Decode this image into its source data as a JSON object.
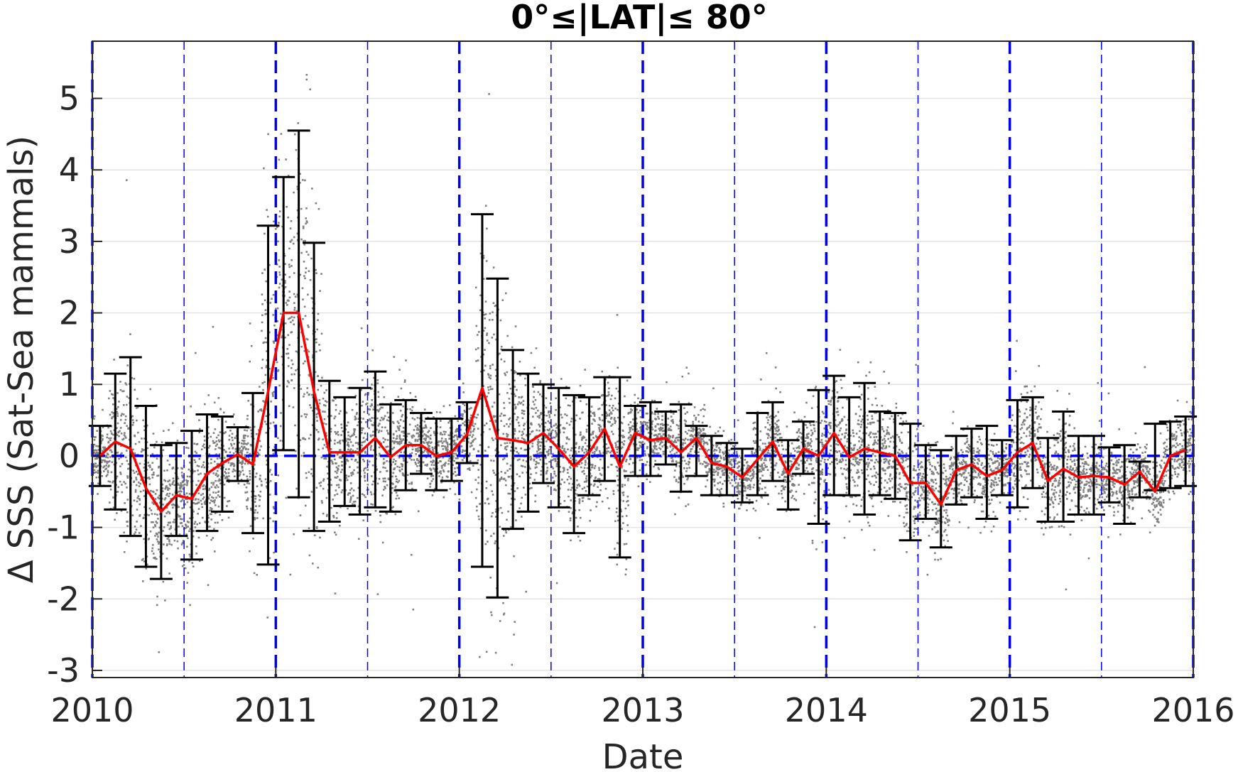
{
  "chart_data": {
    "type": "scatter",
    "title": "0°≤|LAT|≤ 80°",
    "xlabel": "Date",
    "ylabel": "Δ SSS (Sat-Sea mammals)",
    "xlim": [
      2010,
      2016
    ],
    "ylim": [
      -3.1,
      5.8
    ],
    "x_ticks": [
      2010,
      2011,
      2012,
      2013,
      2014,
      2015,
      2016
    ],
    "x_tick_labels": [
      "2010",
      "2011",
      "2012",
      "2013",
      "2014",
      "2015",
      "2016"
    ],
    "y_ticks": [
      -3,
      -2,
      -1,
      0,
      1,
      2,
      3,
      4,
      5
    ],
    "y_tick_labels": [
      "-3",
      "-2",
      "-1",
      "0",
      "1",
      "2",
      "3",
      "4",
      "5"
    ],
    "grid": true,
    "reference_line_y": 0,
    "year_boundaries": [
      2010,
      2011,
      2012,
      2013,
      2014,
      2015,
      2016
    ],
    "half_year_lines": [
      2010.5,
      2011.5,
      2012.5,
      2013.5,
      2014.5,
      2015.5
    ],
    "colors": {
      "scatter": "#808080",
      "mean_line": "#ff0000",
      "error_bars": "#000000",
      "reference": "#0000ee"
    },
    "monthly_mean": {
      "x": [
        2010.042,
        2010.125,
        2010.208,
        2010.292,
        2010.375,
        2010.458,
        2010.542,
        2010.625,
        2010.708,
        2010.792,
        2010.875,
        2010.958,
        2011.042,
        2011.125,
        2011.208,
        2011.292,
        2011.375,
        2011.458,
        2011.542,
        2011.625,
        2011.708,
        2011.792,
        2011.875,
        2011.958,
        2012.042,
        2012.125,
        2012.208,
        2012.292,
        2012.375,
        2012.458,
        2012.542,
        2012.625,
        2012.708,
        2012.792,
        2012.875,
        2012.958,
        2013.042,
        2013.125,
        2013.208,
        2013.292,
        2013.375,
        2013.458,
        2013.542,
        2013.625,
        2013.708,
        2013.792,
        2013.875,
        2013.958,
        2014.042,
        2014.125,
        2014.208,
        2014.292,
        2014.375,
        2014.458,
        2014.542,
        2014.625,
        2014.708,
        2014.792,
        2014.875,
        2014.958,
        2015.042,
        2015.125,
        2015.208,
        2015.292,
        2015.375,
        2015.458,
        2015.542,
        2015.625,
        2015.708,
        2015.792,
        2015.875,
        2015.958
      ],
      "y": [
        0.0,
        0.2,
        0.1,
        -0.45,
        -0.78,
        -0.55,
        -0.6,
        -0.25,
        -0.1,
        0.02,
        -0.12,
        0.9,
        2.0,
        2.0,
        0.9,
        0.05,
        0.05,
        0.05,
        0.25,
        -0.02,
        0.15,
        0.15,
        0.0,
        0.05,
        0.3,
        0.95,
        0.25,
        0.22,
        0.18,
        0.32,
        0.1,
        -0.15,
        0.05,
        0.38,
        -0.15,
        0.32,
        0.22,
        0.25,
        0.05,
        0.25,
        -0.1,
        -0.15,
        -0.3,
        -0.05,
        0.2,
        -0.25,
        0.1,
        0.0,
        0.32,
        -0.02,
        0.1,
        0.05,
        0.0,
        -0.38,
        -0.38,
        -0.68,
        -0.2,
        -0.12,
        -0.28,
        -0.2,
        0.05,
        0.18,
        -0.35,
        -0.18,
        -0.3,
        -0.28,
        -0.3,
        -0.4,
        -0.22,
        -0.5,
        0.0,
        0.08
      ]
    },
    "error_bars": {
      "x": [
        2010.042,
        2010.125,
        2010.208,
        2010.292,
        2010.375,
        2010.458,
        2010.542,
        2010.625,
        2010.708,
        2010.792,
        2010.875,
        2010.958,
        2011.042,
        2011.125,
        2011.208,
        2011.292,
        2011.375,
        2011.458,
        2011.542,
        2011.625,
        2011.708,
        2011.792,
        2011.875,
        2011.958,
        2012.042,
        2012.125,
        2012.208,
        2012.292,
        2012.375,
        2012.458,
        2012.542,
        2012.625,
        2012.708,
        2012.792,
        2012.875,
        2012.958,
        2013.042,
        2013.125,
        2013.208,
        2013.292,
        2013.375,
        2013.458,
        2013.542,
        2013.625,
        2013.708,
        2013.792,
        2013.875,
        2013.958,
        2014.042,
        2014.125,
        2014.208,
        2014.292,
        2014.375,
        2014.458,
        2014.542,
        2014.625,
        2014.708,
        2014.792,
        2014.875,
        2014.958,
        2015.042,
        2015.125,
        2015.208,
        2015.292,
        2015.375,
        2015.458,
        2015.542,
        2015.625,
        2015.708,
        2015.792,
        2015.875,
        2015.958
      ],
      "low": [
        -0.42,
        -0.75,
        -1.12,
        -1.55,
        -1.72,
        -1.12,
        -1.45,
        -1.05,
        -0.78,
        -0.35,
        -1.08,
        -1.52,
        0.08,
        -0.58,
        -1.05,
        -0.92,
        -0.7,
        -0.82,
        -0.72,
        -0.78,
        -0.48,
        -0.25,
        -0.48,
        -0.35,
        -0.1,
        -1.55,
        -1.98,
        -1.02,
        -0.78,
        -0.38,
        -0.72,
        -1.08,
        -0.55,
        -0.35,
        -1.42,
        -0.28,
        -0.28,
        -0.12,
        -0.5,
        -0.28,
        -0.55,
        -0.55,
        -0.65,
        -0.55,
        -0.35,
        -0.75,
        -0.25,
        -0.95,
        -0.55,
        -0.55,
        -0.82,
        -0.55,
        -0.6,
        -1.18,
        -0.88,
        -1.28,
        -0.68,
        -0.58,
        -0.88,
        -0.55,
        -0.72,
        -0.45,
        -0.92,
        -0.92,
        -0.82,
        -0.82,
        -0.65,
        -0.95,
        -0.58,
        -0.48,
        -0.45,
        -0.42
      ],
      "high": [
        0.42,
        1.15,
        1.38,
        0.7,
        0.15,
        0.18,
        0.35,
        0.58,
        0.55,
        0.4,
        0.88,
        3.22,
        3.9,
        4.55,
        2.98,
        1.05,
        0.82,
        0.95,
        1.18,
        0.72,
        0.78,
        0.6,
        0.52,
        0.52,
        0.75,
        3.38,
        2.48,
        1.48,
        1.15,
        1.0,
        0.95,
        0.85,
        0.82,
        1.1,
        1.1,
        0.7,
        0.75,
        0.62,
        0.72,
        0.42,
        0.28,
        0.18,
        0.1,
        0.6,
        0.75,
        0.22,
        0.48,
        0.92,
        1.12,
        0.82,
        1.02,
        0.62,
        0.6,
        0.45,
        0.15,
        0.08,
        0.28,
        0.38,
        0.42,
        0.22,
        0.78,
        0.82,
        0.25,
        0.62,
        0.28,
        0.28,
        0.12,
        0.15,
        -0.08,
        0.45,
        0.48,
        0.55
      ]
    },
    "scatter_points_note": ""
  }
}
